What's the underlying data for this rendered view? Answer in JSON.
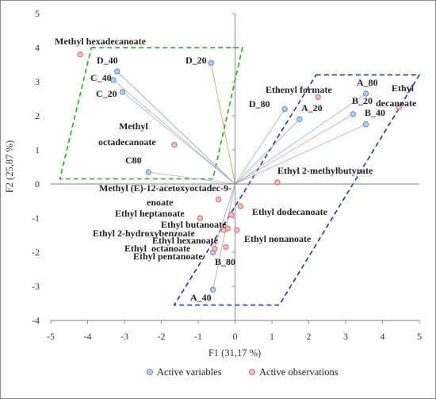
{
  "chart_data": {
    "type": "scatter",
    "subtype": "biplot",
    "xlabel": "F1 (31,17 %)",
    "ylabel": "F2 (25,87 %)",
    "xlim": [
      -5,
      5
    ],
    "ylim": [
      -4,
      5
    ],
    "x_ticks": [
      "-5",
      "-4",
      "-3",
      "-2",
      "-1",
      "0",
      "1",
      "2",
      "3",
      "4",
      "5"
    ],
    "y_ticks": [
      "-4",
      "-3",
      "-2",
      "-1",
      "0",
      "1",
      "2",
      "3",
      "4",
      "5"
    ],
    "grid": false,
    "legend_position": "bottom",
    "series": [
      {
        "name": "Active variables",
        "color": "#5b8fd6",
        "points": [
          {
            "label": "D_40",
            "x": -3.2,
            "y": 3.3
          },
          {
            "label": "C_40",
            "x": -3.3,
            "y": 3.05
          },
          {
            "label": "C_20",
            "x": -3.05,
            "y": 2.7
          },
          {
            "label": "D_20",
            "x": -0.65,
            "y": 3.55
          },
          {
            "label": "D_80",
            "x": 1.35,
            "y": 2.2
          },
          {
            "label": "A_20",
            "x": 1.75,
            "y": 1.9
          },
          {
            "label": "A_80",
            "x": 3.55,
            "y": 2.65
          },
          {
            "label": "B_20",
            "x": 3.2,
            "y": 2.05
          },
          {
            "label": "B_40",
            "x": 3.55,
            "y": 1.75
          },
          {
            "label": "C80",
            "x": -2.35,
            "y": 0.35
          },
          {
            "label": "B_80",
            "x": -0.6,
            "y": -2.0
          },
          {
            "label": "A_40",
            "x": -0.6,
            "y": -3.1
          }
        ]
      },
      {
        "name": "Active observations",
        "color": "#d96a6a",
        "points": [
          {
            "label": "Methyl hexadecanoate",
            "x": -4.2,
            "y": 3.8
          },
          {
            "label": "Methyl octadecanoate",
            "x": -1.65,
            "y": 1.15
          },
          {
            "label": "Ethenyl formate",
            "x": 2.25,
            "y": 2.55
          },
          {
            "label": "Ethyl decanoate",
            "x": 4.45,
            "y": 2.25
          },
          {
            "label": "Ethyl 2-methylbutyrate",
            "x": 1.15,
            "y": 0.05
          },
          {
            "label": "Methyl (E)-12-acetoxyoctadec-9-enoate",
            "x": -0.45,
            "y": -0.45
          },
          {
            "label": "Ethyl heptanoate",
            "x": -0.95,
            "y": -1.0
          },
          {
            "label": "Ethyl dodecanoate",
            "x": 0.15,
            "y": -0.65
          },
          {
            "label": "Ethyl butanoate",
            "x": -0.1,
            "y": -0.9
          },
          {
            "label": "Ethyl 2-hydroxybenzoate",
            "x": -0.3,
            "y": -1.35
          },
          {
            "label": "Ethyl hexanoate",
            "x": -0.2,
            "y": -1.3
          },
          {
            "label": "Ethyl nonanoate",
            "x": 0.05,
            "y": -1.35
          },
          {
            "label": "Ethyl octanoate",
            "x": -0.25,
            "y": -1.85
          },
          {
            "label": "Ethyl pentanoate",
            "x": -0.55,
            "y": -1.9
          }
        ]
      }
    ],
    "annotation_text": {
      "methyl_hexadecanoate": "Methyl hexadecanoate",
      "methyl_octadecanoate_1": "Methyl",
      "methyl_octadecanoate_2": "octadecanoate",
      "ethenyl_formate": "Ethenyl formate",
      "ethyl_decanoate_1": "Ethyl",
      "ethyl_decanoate_2": "decanoate",
      "ethyl_2_methylbutyrate": "Ethyl 2-methylbutyrate",
      "methyl_acetoxy_1": "Methyl (E)-12-acetoxyoctadec-9-",
      "methyl_acetoxy_2": "enoate",
      "ethyl_heptanoate": "Ethyl heptanoate",
      "ethyl_dodecanoate": "Ethyl dodecanoate",
      "ethyl_butanoate": "Ethyl butanoate",
      "ethyl_2_hydroxybenzoate": "Ethyl 2-hydroxybenzoate",
      "ethyl_hexanoate": "Ethyl hexanoate",
      "ethyl_nonanoate": "Ethyl nonanoate",
      "ethyl_octanoate": "Ethyl  octanoate",
      "ethyl_pentanoate": "Ethyl pentanoate"
    },
    "regions": [
      {
        "name": "green-group",
        "color": "#2ca02c",
        "style": "dashed",
        "polygon": [
          [
            -3.9,
            4.0
          ],
          [
            0.2,
            4.0
          ],
          [
            -0.6,
            0.15
          ],
          [
            -4.75,
            0.15
          ]
        ]
      },
      {
        "name": "blue-group",
        "color": "#1f3c88",
        "style": "dashed",
        "polygon": [
          [
            2.2,
            3.2
          ],
          [
            5.0,
            3.2
          ],
          [
            1.2,
            -3.55
          ],
          [
            -1.65,
            -3.55
          ]
        ]
      }
    ]
  }
}
